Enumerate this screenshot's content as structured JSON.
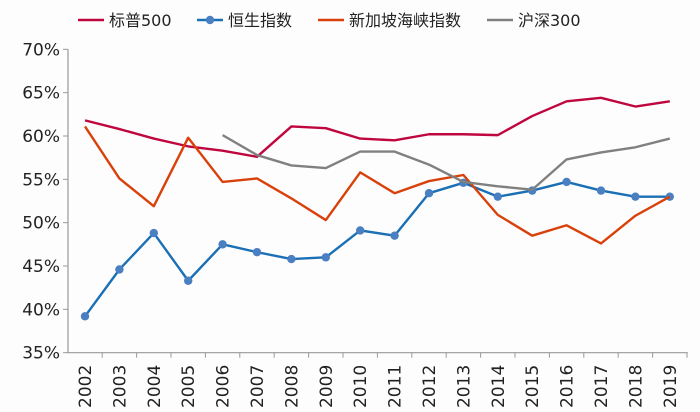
{
  "chart_data": {
    "type": "line",
    "title": "",
    "xlabel": "",
    "ylabel": "",
    "ylim": [
      35,
      70
    ],
    "yticks": [
      "35%",
      "40%",
      "45%",
      "50%",
      "55%",
      "60%",
      "65%",
      "70%"
    ],
    "ytick_values": [
      35,
      40,
      45,
      50,
      55,
      60,
      65,
      70
    ],
    "categories": [
      "2002",
      "2003",
      "2004",
      "2005",
      "2006",
      "2007",
      "2008",
      "2009",
      "2010",
      "2011",
      "2012",
      "2013",
      "2014",
      "2015",
      "2016",
      "2017",
      "2018",
      "2019"
    ],
    "grid": false,
    "legend_position": "top",
    "series": [
      {
        "name": "标普500",
        "color": "#c0063e",
        "markers": false,
        "values": [
          61.8,
          60.8,
          59.7,
          58.8,
          58.3,
          57.6,
          61.1,
          60.9,
          59.7,
          59.5,
          60.2,
          60.2,
          60.1,
          62.3,
          64.0,
          64.4,
          63.4,
          64.0
        ]
      },
      {
        "name": "恒生指数",
        "color": "#1a6fb5",
        "marker_color": "#4a7fc1",
        "markers": true,
        "values": [
          39.2,
          44.6,
          48.8,
          43.3,
          47.5,
          46.6,
          45.8,
          46.0,
          49.1,
          48.5,
          53.4,
          54.6,
          53.0,
          53.7,
          54.7,
          53.7,
          53.0,
          53.0
        ]
      },
      {
        "name": "新加坡海峡指数",
        "color": "#d9410b",
        "markers": false,
        "values": [
          61.1,
          55.1,
          51.9,
          59.8,
          54.7,
          55.1,
          52.8,
          50.3,
          55.8,
          53.4,
          54.8,
          55.5,
          50.9,
          48.5,
          49.7,
          47.6,
          50.8,
          53.0
        ]
      },
      {
        "name": "沪深300",
        "color": "#808080",
        "markers": false,
        "values": [
          null,
          null,
          null,
          null,
          60.1,
          57.8,
          56.6,
          56.3,
          58.2,
          58.2,
          56.7,
          54.7,
          54.2,
          53.8,
          57.3,
          58.1,
          58.7,
          59.7
        ]
      }
    ]
  }
}
